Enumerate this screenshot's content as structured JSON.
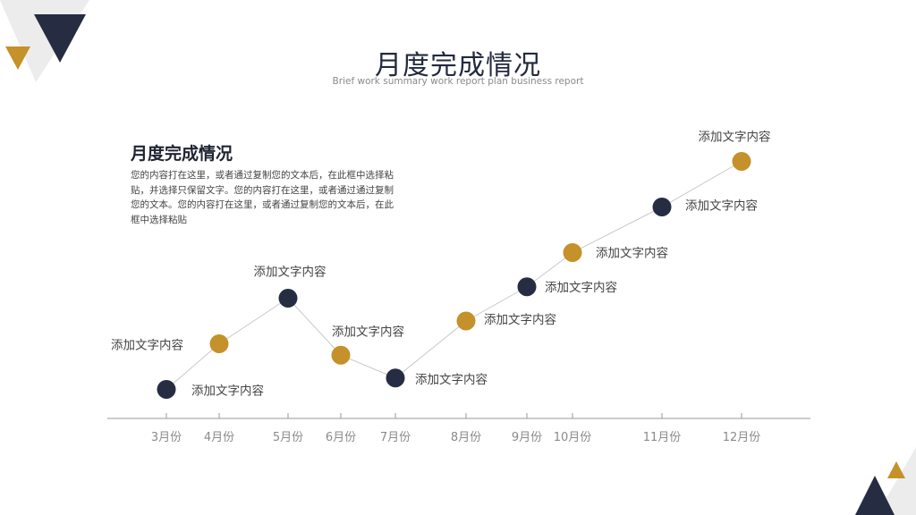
{
  "title": "月度完成情况",
  "subtitle": "Brief work summary work report plan business report",
  "text_block": {
    "heading": "月度完成情况",
    "body": "您的内容打在这里，或者通过复制您的文本后，在此框中选择粘贴，并选择只保留文字。您的内容打在这里，或者通过通过复制您的文本。您的内容打在这里，或者通过复制您的文本后，在此框中选择粘贴"
  },
  "colors": {
    "navy": "#262d42",
    "gold": "#c4912a",
    "line": "#c8c8c8",
    "axis": "#9a9a9a"
  },
  "chart_data": {
    "type": "line",
    "categories": [
      "3月份",
      "4月份",
      "5月份",
      "6月份",
      "7月份",
      "8月份",
      "9月份",
      "10月份",
      "11月份",
      "12月份"
    ],
    "values": [
      1,
      3,
      5,
      2.5,
      1.5,
      4,
      5.5,
      7,
      9,
      11
    ],
    "point_colors": [
      "navy",
      "gold",
      "navy",
      "gold",
      "navy",
      "gold",
      "navy",
      "gold",
      "navy",
      "gold"
    ],
    "point_labels": [
      "添加文字内容",
      "添加文字内容",
      "添加文字内容",
      "添加文字内容",
      "添加文字内容",
      "添加文字内容",
      "添加文字内容",
      "添加文字内容",
      "添加文字内容",
      "添加文字内容"
    ],
    "xlabel": "",
    "ylabel": ""
  }
}
